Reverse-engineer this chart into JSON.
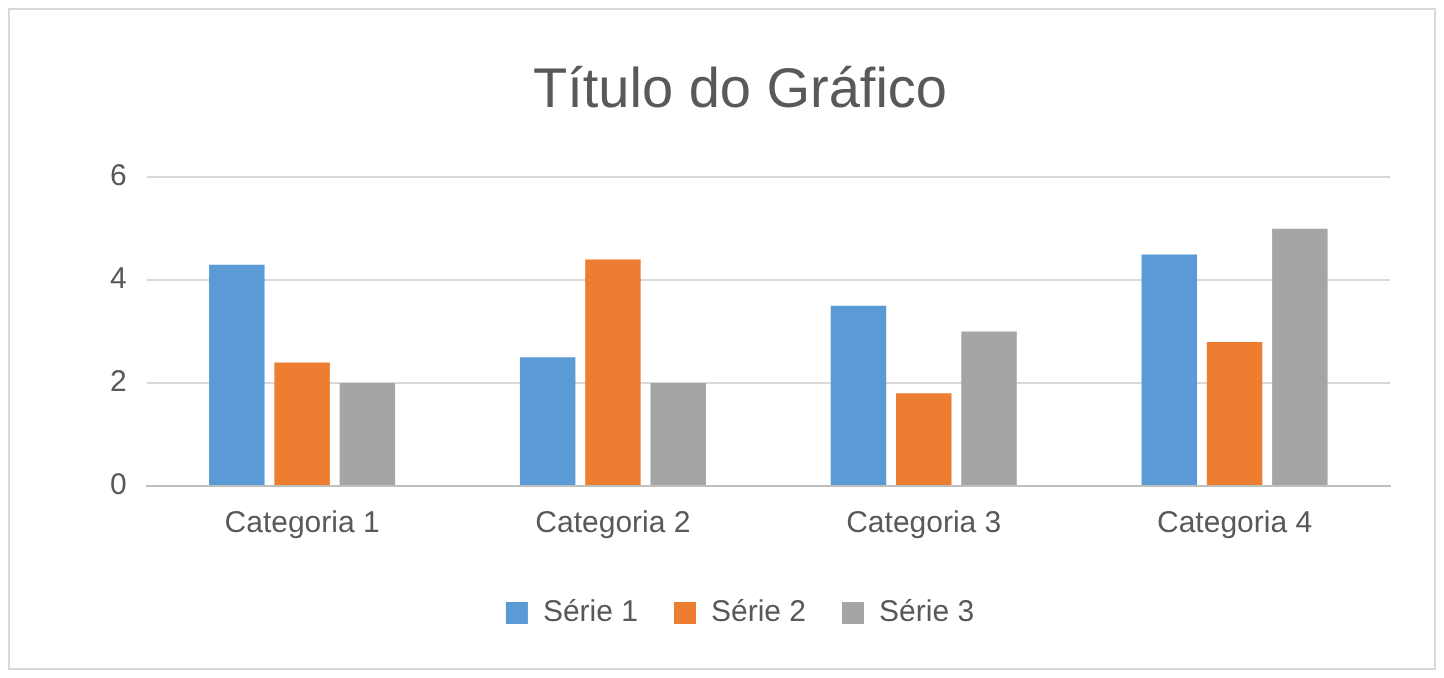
{
  "chart_data": {
    "type": "bar",
    "title": "Título do Gráfico",
    "categories": [
      "Categoria 1",
      "Categoria 2",
      "Categoria 3",
      "Categoria 4"
    ],
    "series": [
      {
        "name": "Série 1",
        "color": "#5b9bd5",
        "values": [
          4.3,
          2.5,
          3.5,
          4.5
        ]
      },
      {
        "name": "Série 2",
        "color": "#ed7d31",
        "values": [
          2.4,
          4.4,
          1.8,
          2.8
        ]
      },
      {
        "name": "Série 3",
        "color": "#a5a5a5",
        "values": [
          2,
          2,
          3,
          5
        ]
      }
    ],
    "ylim": [
      0,
      6
    ],
    "yticks": [
      0,
      2,
      4,
      6
    ],
    "grid": "y",
    "legend": "bottom"
  }
}
